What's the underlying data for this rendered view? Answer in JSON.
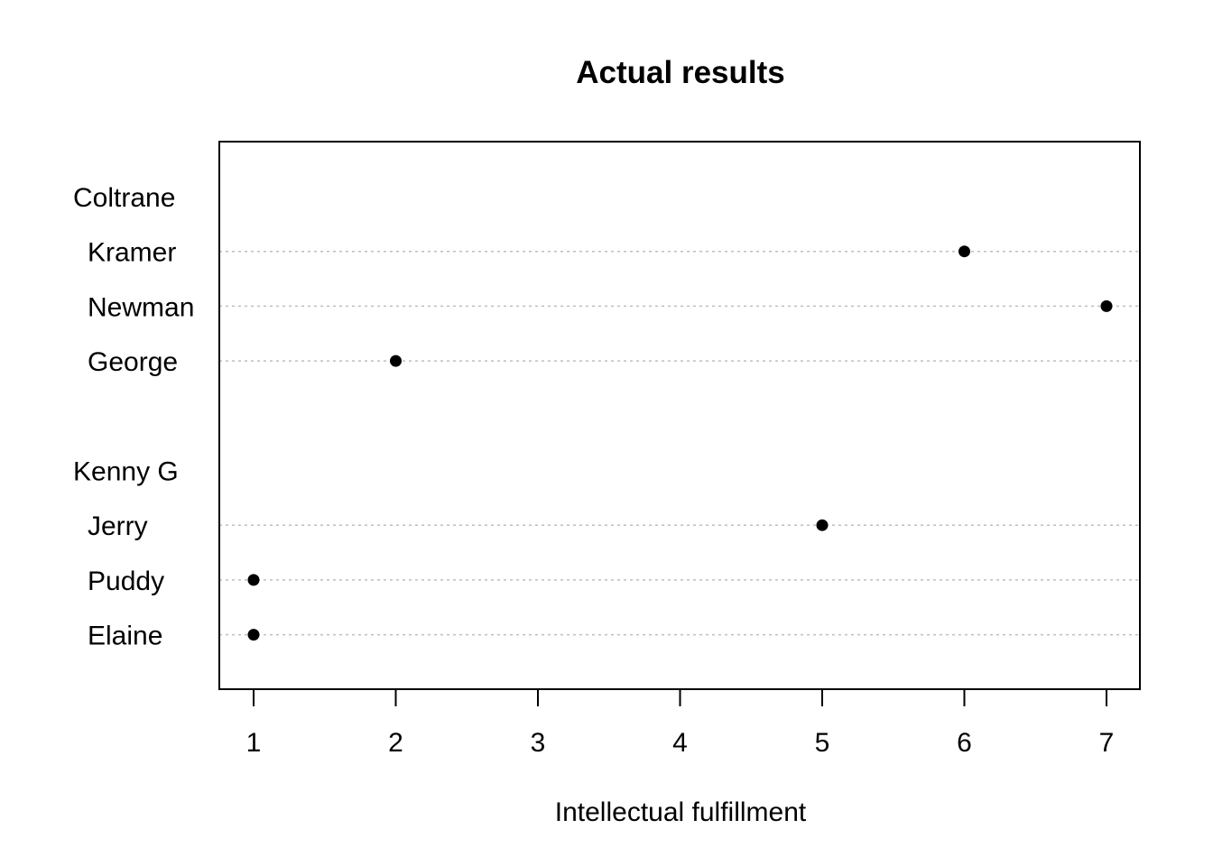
{
  "chart_data": {
    "type": "scatter",
    "subtype": "dotchart",
    "title": "Actual results",
    "xlabel": "Intellectual fulfillment",
    "ylabel": "",
    "xlim": [
      1,
      7
    ],
    "xticks": [
      1,
      2,
      3,
      4,
      5,
      6,
      7
    ],
    "groups": [
      {
        "label": "Coltrane",
        "items": [
          {
            "label": "Kramer",
            "value": 6
          },
          {
            "label": "Newman",
            "value": 7
          },
          {
            "label": "George",
            "value": 2
          }
        ]
      },
      {
        "label": "Kenny G",
        "items": [
          {
            "label": "Jerry",
            "value": 5
          },
          {
            "label": "Puddy",
            "value": 1
          },
          {
            "label": "Elaine",
            "value": 1
          }
        ]
      }
    ],
    "grid": "dotted horizontal lines per item",
    "legend": "none"
  }
}
